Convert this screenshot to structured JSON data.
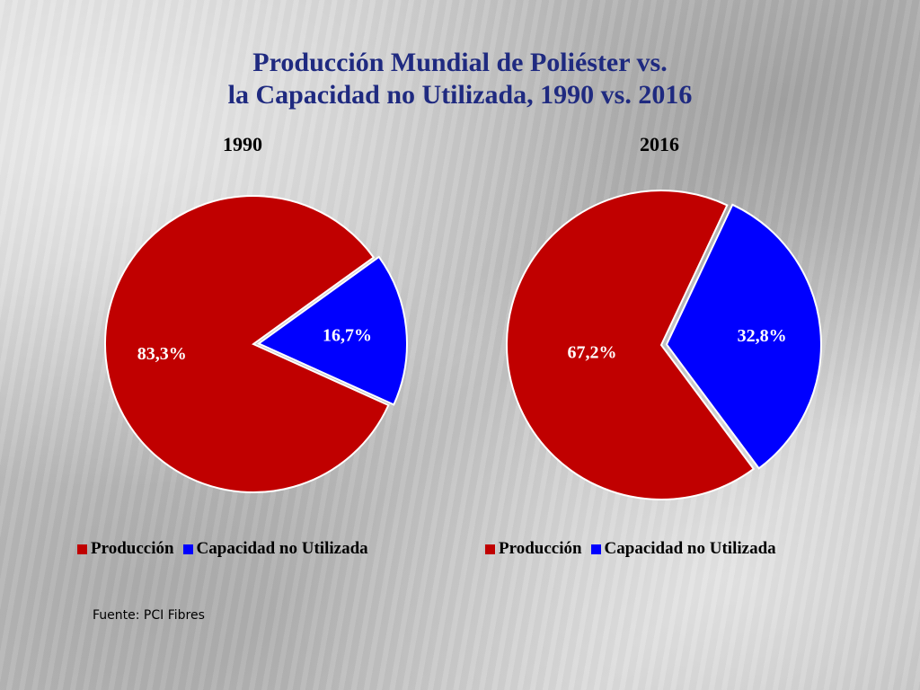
{
  "title": {
    "line1": "Producción Mundial de Poliéster vs.",
    "line2": "la Capacidad no Utilizada, 1990 vs. 2016"
  },
  "colors": {
    "produccion": "#c00000",
    "capacidad": "#0000ff",
    "title": "#1f2a80"
  },
  "legend": {
    "produccion": "Producción",
    "capacidad": "Capacidad no Utilizada"
  },
  "source": "Fuente: PCI Fibres",
  "chart_data": [
    {
      "type": "pie",
      "title": "1990",
      "categories": [
        "Producción",
        "Capacidad no Utilizada"
      ],
      "values": [
        83.3,
        16.7
      ],
      "data_labels": [
        "83,3%",
        "16,7%"
      ],
      "legend_position": "bottom"
    },
    {
      "type": "pie",
      "title": "2016",
      "categories": [
        "Producción",
        "Capacidad no Utilizada"
      ],
      "values": [
        67.2,
        32.8
      ],
      "data_labels": [
        "67,2%",
        "32,8%"
      ],
      "legend_position": "bottom"
    }
  ]
}
